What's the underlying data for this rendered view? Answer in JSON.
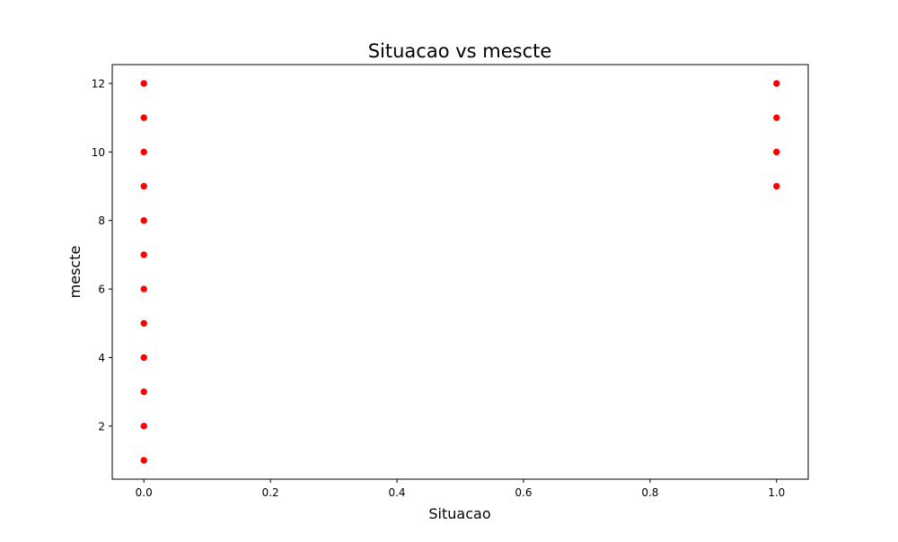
{
  "chart_data": {
    "type": "scatter",
    "title": "Situacao vs mescte",
    "xlabel": "Situacao",
    "ylabel": "mescte",
    "xlim": [
      -0.05,
      1.05
    ],
    "ylim": [
      0.45,
      12.55
    ],
    "xticks": [
      0.0,
      0.2,
      0.4,
      0.6,
      0.8,
      1.0
    ],
    "xtick_labels": [
      "0.0",
      "0.2",
      "0.4",
      "0.6",
      "0.8",
      "1.0"
    ],
    "yticks": [
      2,
      4,
      6,
      8,
      10,
      12
    ],
    "ytick_labels": [
      "2",
      "4",
      "6",
      "8",
      "10",
      "12"
    ],
    "grid": false,
    "marker_color": "#ff0000",
    "series": [
      {
        "name": "mescte",
        "points": [
          {
            "x": 0,
            "y": 1
          },
          {
            "x": 0,
            "y": 2
          },
          {
            "x": 0,
            "y": 3
          },
          {
            "x": 0,
            "y": 4
          },
          {
            "x": 0,
            "y": 5
          },
          {
            "x": 0,
            "y": 6
          },
          {
            "x": 0,
            "y": 7
          },
          {
            "x": 0,
            "y": 8
          },
          {
            "x": 0,
            "y": 9
          },
          {
            "x": 0,
            "y": 10
          },
          {
            "x": 0,
            "y": 11
          },
          {
            "x": 0,
            "y": 12
          },
          {
            "x": 1,
            "y": 9
          },
          {
            "x": 1,
            "y": 10
          },
          {
            "x": 1,
            "y": 11
          },
          {
            "x": 1,
            "y": 12
          }
        ]
      }
    ]
  }
}
